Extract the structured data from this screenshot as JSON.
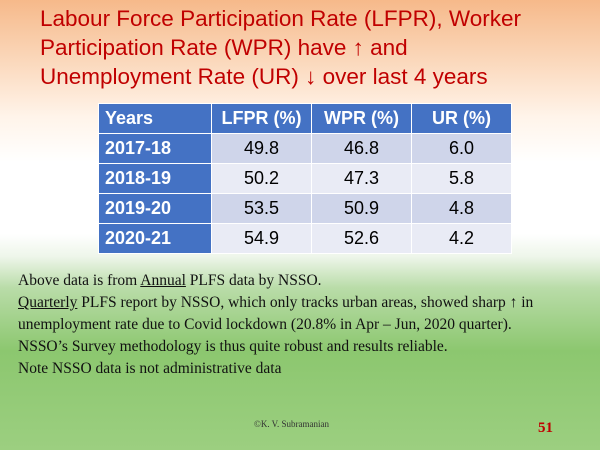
{
  "title": {
    "lines": [
      "Labour Force Participation Rate (LFPR), Worker",
      "Participation Rate (WPR) have ↑ and",
      "Unemployment Rate (UR) ↓ over last 4 years"
    ]
  },
  "table": {
    "header": [
      "Years",
      "LFPR (%)",
      "WPR (%)",
      "UR (%)"
    ],
    "rows": [
      [
        "2017-18",
        "49.8",
        "46.8",
        "6.0"
      ],
      [
        "2018-19",
        "50.2",
        "47.3",
        "5.8"
      ],
      [
        "2019-20",
        "53.5",
        "50.9",
        "4.8"
      ],
      [
        "2020-21",
        "54.9",
        "52.6",
        "4.2"
      ]
    ]
  },
  "notes": [
    [
      {
        "text": "Above data is from "
      },
      {
        "text": "Annual",
        "underline": true
      },
      {
        "text": " PLFS data by NSSO."
      }
    ],
    [
      {
        "text": "Quarterly",
        "underline": true
      },
      {
        "text": " PLFS report by NSSO, which only tracks urban areas, showed sharp ↑ in unemployment rate due to Covid lockdown (20.8% in Apr – Jun, 2020 quarter)."
      }
    ],
    [
      {
        "text": "NSSO’s Survey methodology is thus quite robust and results reliable."
      }
    ],
    [
      {
        "text": "Note NSSO data is not administrative data"
      }
    ]
  ],
  "footer": {
    "credit": "©K. V. Subramanian",
    "slide_number": "51"
  }
}
